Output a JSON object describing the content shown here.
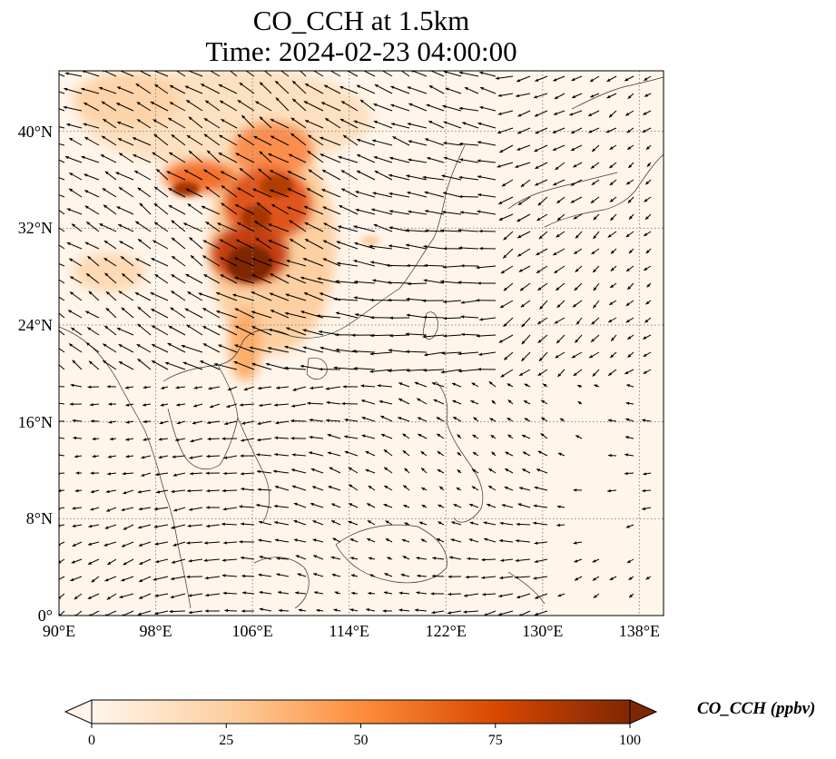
{
  "title": {
    "line1": "CO_CCH at 1.5km",
    "line2": "Time: 2024-02-23 04:00:00"
  },
  "axes": {
    "xticks": [
      "90°E",
      "98°E",
      "106°E",
      "114°E",
      "122°E",
      "130°E",
      "138°E"
    ],
    "yticks": [
      "0°",
      "8°N",
      "16°N",
      "24°N",
      "32°N",
      "40°N"
    ],
    "lon_range": [
      90,
      140
    ],
    "lat_range": [
      0,
      45
    ],
    "gridlines": true
  },
  "colorbar": {
    "label": "CO_CCH (ppbv)",
    "ticks": [
      "0",
      "25",
      "50",
      "75",
      "100"
    ],
    "range": [
      0,
      100
    ],
    "extend": "both",
    "colormap": [
      "#fff5eb",
      "#fdd0a2",
      "#fd8d3c",
      "#d94801",
      "#7f2704"
    ]
  },
  "colors": {
    "background": "#fff5eb",
    "wind_arrows": "#000000"
  }
}
